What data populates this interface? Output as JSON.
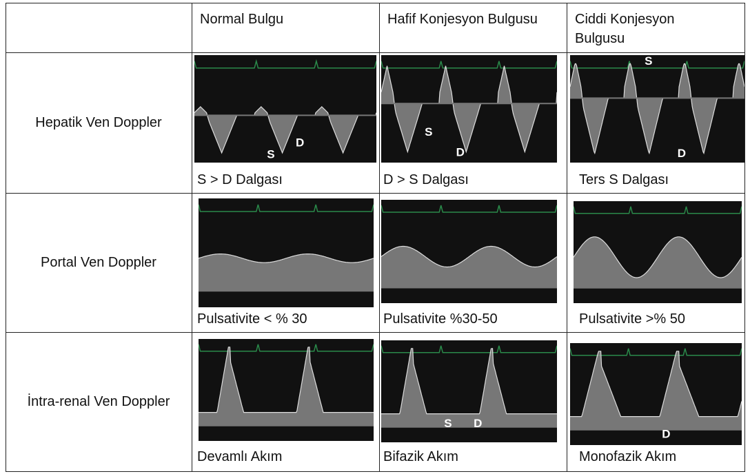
{
  "header": {
    "columns": [
      "Normal Bulgu",
      "Hafif Konjesyon Bulgusu",
      "Ciddi Konjesyon Bulgusu"
    ]
  },
  "rows": [
    {
      "label": "Hepatik Ven Doppler",
      "cells": [
        {
          "caption": "S > D Dalgası",
          "markers": [
            "S",
            "D"
          ]
        },
        {
          "caption": "D > S Dalgası",
          "markers": [
            "S",
            "D"
          ]
        },
        {
          "caption": "Ters S Dalgası",
          "markers": [
            "S",
            "D"
          ]
        }
      ]
    },
    {
      "label": "Portal Ven Doppler",
      "cells": [
        {
          "caption": "Pulsativite < % 30"
        },
        {
          "caption": "Pulsativite  %30-50"
        },
        {
          "caption": "Pulsativite >% 50"
        }
      ]
    },
    {
      "label": "İntra-renal Ven Doppler",
      "cells": [
        {
          "caption": "Devamlı Akım"
        },
        {
          "caption": "Bifazik Akım",
          "markers": [
            "S",
            "D"
          ]
        },
        {
          "caption": "Monofazik Akım",
          "markers": [
            "D"
          ]
        }
      ]
    }
  ]
}
